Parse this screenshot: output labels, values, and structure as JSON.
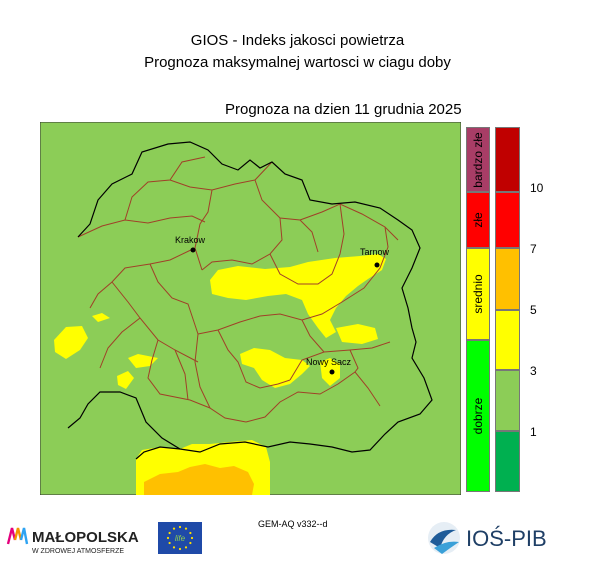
{
  "header": {
    "title_line1": "GIOS - Indeks jakosci powietrza",
    "title_line2": "Prognoza maksymalnej wartosci w ciagu doby",
    "forecast_label": "Prognoza na dzien  11 grudnia 2025"
  },
  "map": {
    "cities": [
      {
        "name": "Krakow"
      },
      {
        "name": "Tarnow"
      },
      {
        "name": "Nowy Sacz"
      }
    ],
    "colors": {
      "background": "#8ccd57",
      "yellow": "#ffff00",
      "orange": "#ffc000",
      "voivodeship_border": "#000000",
      "county_border": "#a04028"
    }
  },
  "legend": {
    "categories": [
      {
        "label": "bardzo złe",
        "color": "#a83d66"
      },
      {
        "label": "złe",
        "color": "#ff0000"
      },
      {
        "label": "srednio",
        "color": "#ffff00"
      },
      {
        "label": "dobrze",
        "color": "#00ff00"
      }
    ],
    "scale_colors": [
      "#c00000",
      "#ff0000",
      "#ffc000",
      "#ffff00",
      "#8ccd57",
      "#00b050"
    ],
    "tick_labels": [
      "10",
      "7",
      "5",
      "3",
      "1"
    ]
  },
  "footer": {
    "model_label": "GEM-AQ v332--d",
    "malopolska_name": "MAŁOPOLSKA",
    "malopolska_tagline": "W ZDROWEJ ATMOSFERZE",
    "eu_logo_text": "life",
    "ios_name": "IOŚ-PIB"
  }
}
